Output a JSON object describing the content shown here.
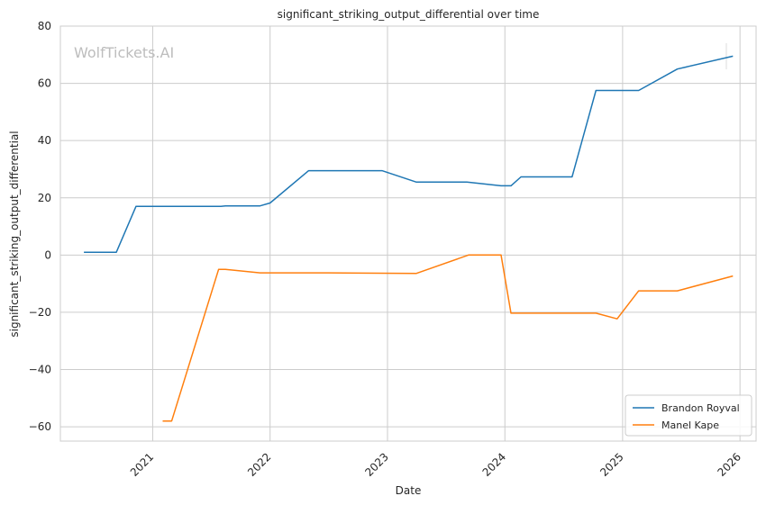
{
  "chart_data": {
    "type": "line",
    "title": "significant_striking_output_differential over time",
    "xlabel": "Date",
    "ylabel": "significant_striking_output_differential",
    "watermark": "WolfTickets.AI",
    "xlim": [
      "2020-03-20",
      "2026-02-20"
    ],
    "ylim": [
      -65,
      80
    ],
    "x_ticks": [
      "2021-01-01",
      "2022-01-01",
      "2023-01-01",
      "2024-01-01",
      "2025-01-01",
      "2026-01-01"
    ],
    "x_tick_labels": [
      "2021",
      "2022",
      "2023",
      "2024",
      "2025",
      "2026"
    ],
    "y_ticks": [
      80,
      60,
      40,
      20,
      0,
      -20,
      -40,
      -60
    ],
    "y_tick_labels": [
      "80",
      "60",
      "40",
      "20",
      "0",
      "−20",
      "−40",
      "−60"
    ],
    "grid": true,
    "legend_position": "lower-right",
    "series": [
      {
        "name": "Brandon Royval",
        "color": "#1f77b4",
        "points": [
          [
            "2020-06-01",
            1
          ],
          [
            "2020-09-10",
            1
          ],
          [
            "2020-11-10",
            17
          ],
          [
            "2021-08-01",
            17
          ],
          [
            "2021-08-15",
            17.2
          ],
          [
            "2021-12-01",
            17.2
          ],
          [
            "2022-01-01",
            18.2
          ],
          [
            "2022-05-01",
            29.5
          ],
          [
            "2022-12-15",
            29.5
          ],
          [
            "2023-04-01",
            25.5
          ],
          [
            "2023-09-05",
            25.5
          ],
          [
            "2023-12-20",
            24.2
          ],
          [
            "2024-01-20",
            24.2
          ],
          [
            "2024-02-20",
            27.3
          ],
          [
            "2024-07-28",
            27.3
          ],
          [
            "2024-10-10",
            57.5
          ],
          [
            "2025-02-20",
            57.5
          ],
          [
            "2025-06-20",
            65
          ],
          [
            "2025-12-10",
            69.5
          ]
        ]
      },
      {
        "name": "Manel Kape",
        "color": "#ff7f0e",
        "points": [
          [
            "2021-02-01",
            -58
          ],
          [
            "2021-03-01",
            -58
          ],
          [
            "2021-07-25",
            -5
          ],
          [
            "2021-08-15",
            -5
          ],
          [
            "2021-12-01",
            -6.2
          ],
          [
            "2022-07-01",
            -6.2
          ],
          [
            "2023-04-01",
            -6.4
          ],
          [
            "2023-09-10",
            0
          ],
          [
            "2023-12-20",
            0
          ],
          [
            "2024-01-20",
            -20.3
          ],
          [
            "2024-10-10",
            -20.3
          ],
          [
            "2024-12-15",
            -22.3
          ],
          [
            "2025-02-20",
            -12.5
          ],
          [
            "2025-06-20",
            -12.5
          ],
          [
            "2025-12-10",
            -7.3
          ]
        ]
      }
    ]
  }
}
